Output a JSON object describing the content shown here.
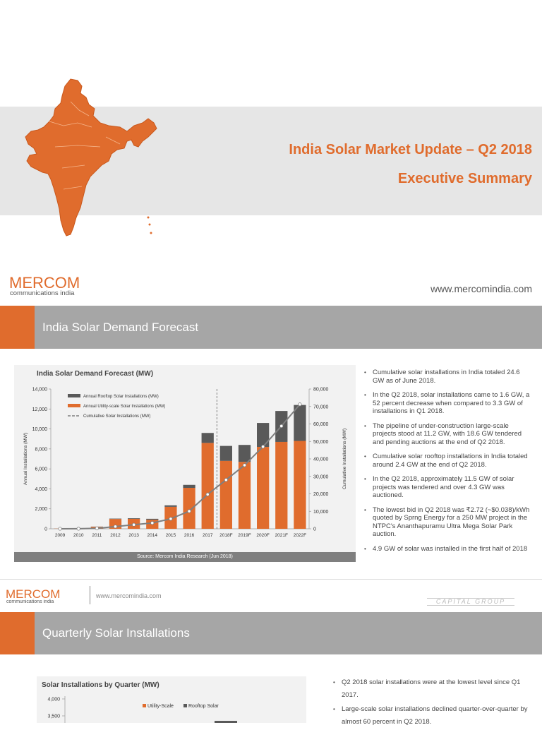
{
  "slide1": {
    "title_line1": "India Solar Market Update – Q2 2018",
    "title_line2": "Executive Summary",
    "logo_word": "MERCOM",
    "logo_sub": "communications india",
    "website": "www.mercomindia.com"
  },
  "section1": {
    "title": "India Solar Demand Forecast",
    "chart_title": "India Solar Demand Forecast (MW)",
    "source": "Source: Mercom India Research (Jun 2018)",
    "bullets": [
      "Cumulative solar installations in India totaled 24.6 GW as of June 2018.",
      "In the Q2 2018, solar installations came to 1.6 GW, a 52 percent decrease when compared to 3.3 GW of installations in Q1 2018.",
      "The pipeline of under-construction large-scale projects stood at 11.2 GW, with 18.6 GW tendered and pending auctions at the end of Q2 2018.",
      "Cumulative solar rooftop installations in India totaled around 2.4 GW at the end of Q2 2018.",
      "In the Q2 2018, approximately 11.5 GW of solar projects was tendered and over 4.3 GW was auctioned.",
      "The lowest bid in Q2 2018 was ₹2.72 (~$0.038)/kWh quoted by Sprng Energy for a 250 MW project in the NTPC's Ananthapuramu Ultra Mega Solar Park auction.",
      "4.9 GW of solar was installed in the first half of 2018"
    ]
  },
  "footer": {
    "logo_word": "MERCOM",
    "logo_sub": "communications india",
    "website": "www.mercomindia.com",
    "capital_group": "CAPITAL GROUP"
  },
  "section2": {
    "title": "Quarterly Solar Installations",
    "chart_title": "Solar Installations by Quarter (MW)",
    "bullets": [
      "Q2 2018 solar installations were at the lowest level since Q1 2017.",
      "Large-scale solar installations declined quarter-over-quarter by almost 60 percent in Q2 2018."
    ]
  },
  "colors": {
    "accent": "#e06c2d",
    "rooftop": "#595959",
    "utility": "#e06c2d",
    "cumulative": "#7f7f7f",
    "band": "#e6e6e6",
    "header_bar": "#a6a6a6"
  },
  "chart_data": [
    {
      "type": "bar",
      "stacked": true,
      "title": "India Solar Demand Forecast (MW)",
      "ylabel": "Annual Installations (MW)",
      "y2label": "Cumulative Installations (MW)",
      "categories": [
        "2009",
        "2010",
        "2011",
        "2012",
        "2013",
        "2014",
        "2015",
        "2016",
        "2017",
        "2018F",
        "2019F",
        "2020F",
        "2021F",
        "2022F"
      ],
      "series": [
        {
          "name": "Annual Utility-scale Solar Installations (MW)",
          "kind": "bar",
          "values": [
            15,
            15,
            200,
            980,
            1000,
            900,
            2200,
            4100,
            8600,
            6800,
            6700,
            8200,
            8700,
            8800
          ]
        },
        {
          "name": "Annual Rooftop Solar Installations (MW)",
          "kind": "bar",
          "values": [
            5,
            10,
            20,
            40,
            60,
            100,
            150,
            300,
            1000,
            1500,
            1700,
            2400,
            3100,
            3600
          ]
        },
        {
          "name": "Cumulative Solar Installations (MW)",
          "kind": "line",
          "axis": "right",
          "values": [
            20,
            45,
            265,
            1285,
            2345,
            3345,
            5695,
            10095,
            19695,
            27995,
            36395,
            47000,
            58800,
            71200
          ]
        }
      ],
      "ylim": [
        0,
        14000
      ],
      "yticks": [
        0,
        2000,
        4000,
        6000,
        8000,
        10000,
        12000,
        14000
      ],
      "y2lim": [
        0,
        80000
      ],
      "y2ticks": [
        0,
        10000,
        20000,
        30000,
        40000,
        50000,
        60000,
        70000,
        80000
      ],
      "divider_after": "2017",
      "legend_position": "top-left"
    },
    {
      "type": "bar",
      "stacked": true,
      "title": "Solar Installations by Quarter (MW)",
      "legend": [
        "Utility-Scale",
        "Rooftop Solar"
      ],
      "yticks_visible": [
        4000,
        3500
      ],
      "legend_position": "top-center"
    }
  ]
}
